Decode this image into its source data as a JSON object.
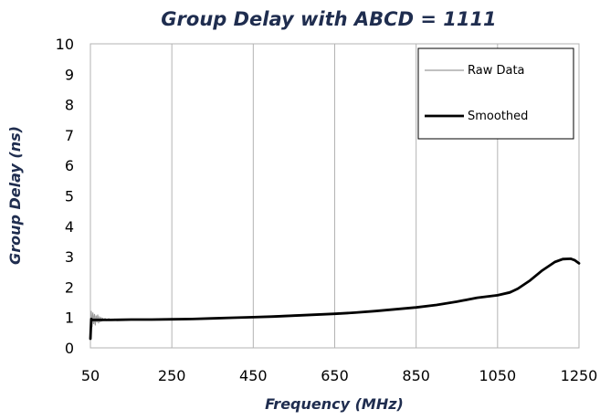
{
  "chart_data": {
    "type": "line",
    "title": "Group Delay with ABCD = 1111",
    "xlabel": "Frequency (MHz)",
    "ylabel": "Group Delay (ns)",
    "xlim": [
      50,
      1250
    ],
    "ylim": [
      0,
      10
    ],
    "xticks": [
      50,
      250,
      450,
      650,
      850,
      1050,
      1250
    ],
    "yticks": [
      0,
      1,
      2,
      3,
      4,
      5,
      6,
      7,
      8,
      9,
      10
    ],
    "grid": {
      "vertical": true,
      "horizontal": false
    },
    "legend": {
      "position": "top-right"
    },
    "series": [
      {
        "name": "Raw Data",
        "color": "#9a9a9a",
        "x": [
          50,
          52,
          54,
          56,
          58,
          60,
          62,
          64,
          66,
          68,
          70,
          72,
          74,
          76,
          78,
          80,
          83,
          86,
          90,
          95,
          100,
          110,
          120,
          140,
          160,
          200,
          250,
          300,
          350,
          400,
          450,
          500,
          550,
          600,
          650,
          700,
          750,
          800,
          850,
          900,
          950,
          1000,
          1050,
          1100,
          1130,
          1160,
          1190,
          1210,
          1230,
          1240,
          1250
        ],
        "y": [
          0.3,
          1.2,
          0.7,
          1.15,
          0.8,
          1.1,
          0.75,
          1.05,
          0.85,
          1.08,
          0.82,
          1.02,
          0.86,
          1.0,
          0.88,
          0.98,
          0.9,
          0.97,
          0.9,
          0.96,
          0.92,
          0.95,
          0.92,
          0.94,
          0.93,
          0.94,
          0.94,
          0.96,
          0.98,
          1.0,
          1.02,
          1.05,
          1.08,
          1.1,
          1.13,
          1.17,
          1.22,
          1.28,
          1.34,
          1.42,
          1.53,
          1.66,
          1.75,
          1.93,
          2.2,
          2.55,
          2.85,
          2.95,
          2.95,
          2.9,
          2.8
        ]
      },
      {
        "name": "Smoothed",
        "color": "#000000",
        "x": [
          50,
          52,
          55,
          60,
          70,
          80,
          100,
          150,
          200,
          250,
          300,
          350,
          400,
          450,
          500,
          550,
          600,
          650,
          700,
          750,
          800,
          850,
          900,
          950,
          1000,
          1050,
          1080,
          1100,
          1130,
          1160,
          1190,
          1210,
          1230,
          1240,
          1250
        ],
        "y": [
          0.3,
          0.95,
          0.92,
          0.92,
          0.92,
          0.92,
          0.92,
          0.93,
          0.93,
          0.94,
          0.95,
          0.97,
          0.99,
          1.01,
          1.03,
          1.06,
          1.09,
          1.12,
          1.16,
          1.21,
          1.27,
          1.33,
          1.41,
          1.52,
          1.65,
          1.73,
          1.82,
          1.95,
          2.22,
          2.55,
          2.82,
          2.92,
          2.93,
          2.88,
          2.78
        ]
      }
    ]
  }
}
